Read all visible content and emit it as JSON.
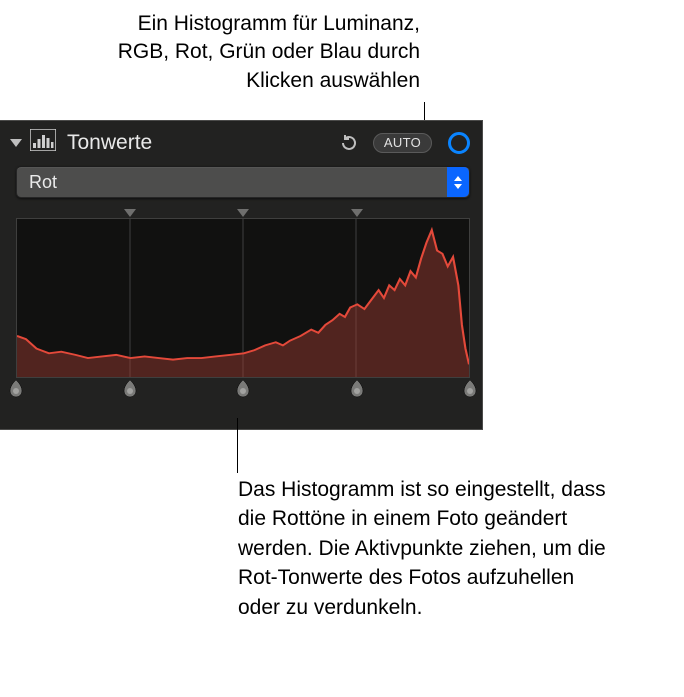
{
  "callouts": {
    "top": "Ein Histogramm für Luminanz, RGB, Rot, Grün oder Blau durch Klicken auswählen",
    "bottom": "Das Histogramm ist so eingestellt, dass die Rottöne in einem Foto geändert werden. Die Aktivpunkte ziehen, um die Rot-Tonwerte des Fotos aufzuhellen oder zu verdunkeln."
  },
  "panel": {
    "title": "Tonwerte",
    "auto_label": "AUTO",
    "title_color": "#e9e9e9",
    "bg_color": "#222221"
  },
  "dropdown": {
    "selected": "Rot"
  },
  "histogram": {
    "type": "area",
    "stroke": "#e4493a",
    "fill": "rgba(160,60,50,0.45)",
    "grid_color": "#3e3e3d",
    "bg": "#111110",
    "xlim": [
      0,
      255
    ],
    "ylim": [
      0,
      100
    ],
    "grid_x_positions": [
      0.25,
      0.5,
      0.75
    ],
    "points": [
      {
        "x": 0,
        "y": 26
      },
      {
        "x": 5,
        "y": 24
      },
      {
        "x": 11,
        "y": 18
      },
      {
        "x": 18,
        "y": 15
      },
      {
        "x": 25,
        "y": 16
      },
      {
        "x": 33,
        "y": 14
      },
      {
        "x": 40,
        "y": 12
      },
      {
        "x": 48,
        "y": 13
      },
      {
        "x": 56,
        "y": 14
      },
      {
        "x": 64,
        "y": 12
      },
      {
        "x": 72,
        "y": 13
      },
      {
        "x": 80,
        "y": 12
      },
      {
        "x": 88,
        "y": 11
      },
      {
        "x": 96,
        "y": 12
      },
      {
        "x": 104,
        "y": 12
      },
      {
        "x": 112,
        "y": 13
      },
      {
        "x": 120,
        "y": 14
      },
      {
        "x": 128,
        "y": 15
      },
      {
        "x": 134,
        "y": 17
      },
      {
        "x": 140,
        "y": 20
      },
      {
        "x": 146,
        "y": 22
      },
      {
        "x": 150,
        "y": 20
      },
      {
        "x": 154,
        "y": 23
      },
      {
        "x": 160,
        "y": 26
      },
      {
        "x": 166,
        "y": 30
      },
      {
        "x": 170,
        "y": 28
      },
      {
        "x": 174,
        "y": 33
      },
      {
        "x": 178,
        "y": 36
      },
      {
        "x": 182,
        "y": 40
      },
      {
        "x": 185,
        "y": 38
      },
      {
        "x": 188,
        "y": 44
      },
      {
        "x": 192,
        "y": 46
      },
      {
        "x": 196,
        "y": 43
      },
      {
        "x": 200,
        "y": 49
      },
      {
        "x": 204,
        "y": 55
      },
      {
        "x": 207,
        "y": 50
      },
      {
        "x": 210,
        "y": 58
      },
      {
        "x": 213,
        "y": 55
      },
      {
        "x": 216,
        "y": 62
      },
      {
        "x": 219,
        "y": 58
      },
      {
        "x": 222,
        "y": 67
      },
      {
        "x": 225,
        "y": 63
      },
      {
        "x": 228,
        "y": 75
      },
      {
        "x": 231,
        "y": 85
      },
      {
        "x": 234,
        "y": 93
      },
      {
        "x": 237,
        "y": 80
      },
      {
        "x": 240,
        "y": 78
      },
      {
        "x": 243,
        "y": 70
      },
      {
        "x": 246,
        "y": 76
      },
      {
        "x": 249,
        "y": 58
      },
      {
        "x": 251,
        "y": 33
      },
      {
        "x": 253,
        "y": 18
      },
      {
        "x": 255,
        "y": 8
      }
    ],
    "top_handle_positions": [
      0.25,
      0.5,
      0.75
    ],
    "bottom_handle_positions": [
      0.0,
      0.25,
      0.5,
      0.75,
      1.0
    ],
    "handle_color": "#7a7a78",
    "handle_highlight": "#bcbcba"
  }
}
